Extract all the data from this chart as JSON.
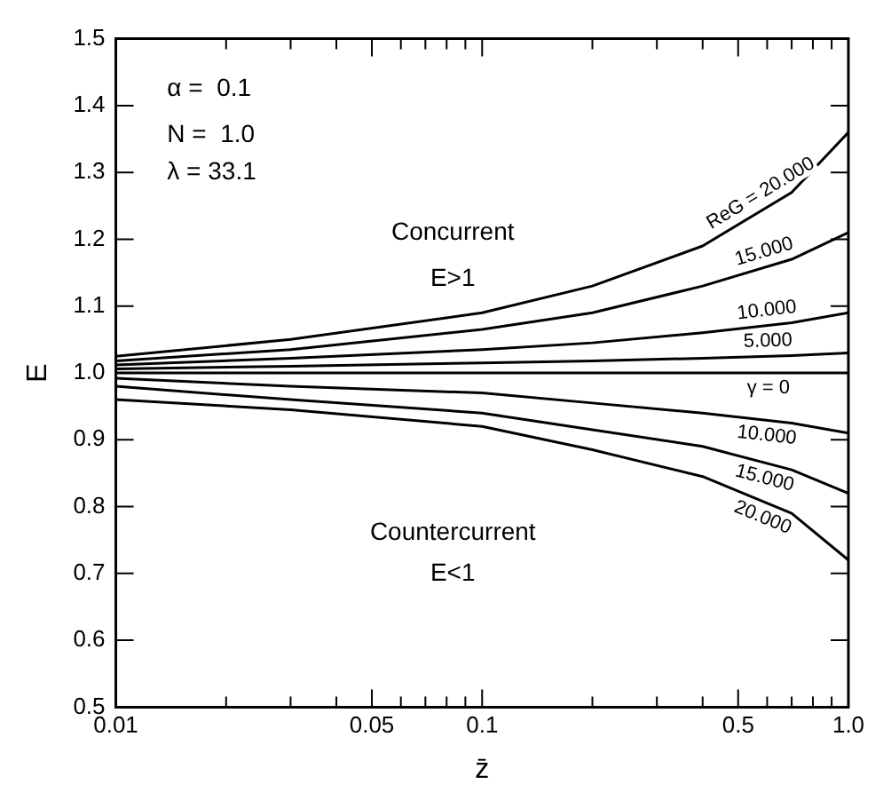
{
  "chart_data": {
    "type": "line",
    "xlabel": "z̄",
    "ylabel": "E",
    "x": [
      0.01,
      0.03,
      0.1,
      0.2,
      0.4,
      0.7,
      1.0
    ],
    "series": [
      {
        "name": "ReG = 20.000",
        "color": "#000000",
        "values": [
          1.025,
          1.05,
          1.09,
          1.13,
          1.19,
          1.27,
          1.36
        ]
      },
      {
        "name": "15.000",
        "color": "#000000",
        "values": [
          1.018,
          1.035,
          1.065,
          1.09,
          1.13,
          1.17,
          1.21
        ]
      },
      {
        "name": "10.000",
        "color": "#000000",
        "values": [
          1.012,
          1.022,
          1.035,
          1.045,
          1.06,
          1.075,
          1.09
        ]
      },
      {
        "name": "5.000",
        "color": "#000000",
        "values": [
          1.006,
          1.01,
          1.015,
          1.018,
          1.022,
          1.026,
          1.03
        ]
      },
      {
        "name": "γ = 0",
        "color": "#000000",
        "values": [
          1.0,
          1.0,
          1.0,
          1.0,
          1.0,
          1.0,
          1.0
        ]
      },
      {
        "name": "10.000",
        "color": "#000000",
        "values": [
          0.992,
          0.98,
          0.97,
          0.955,
          0.94,
          0.925,
          0.91
        ]
      },
      {
        "name": "15.000",
        "color": "#000000",
        "values": [
          0.98,
          0.96,
          0.94,
          0.915,
          0.89,
          0.855,
          0.82
        ]
      },
      {
        "name": "20.000",
        "color": "#000000",
        "values": [
          0.96,
          0.945,
          0.92,
          0.885,
          0.845,
          0.79,
          0.72
        ]
      }
    ],
    "log": "x",
    "xlim": [
      0.01,
      1.0
    ],
    "ylim": [
      0.5,
      1.5
    ],
    "xticks": [
      0.01,
      {
        "value": 0.02,
        "label": null
      },
      {
        "value": 0.03,
        "label": null
      },
      {
        "value": 0.04,
        "label": null
      },
      0.05,
      {
        "value": 0.06,
        "label": null
      },
      {
        "value": 0.07,
        "label": null
      },
      {
        "value": 0.08,
        "label": null
      },
      {
        "value": 0.09,
        "label": null
      },
      0.1,
      {
        "value": 0.2,
        "label": null
      },
      {
        "value": 0.3,
        "label": null
      },
      {
        "value": 0.4,
        "label": null
      },
      0.5,
      {
        "value": 0.6,
        "label": null
      },
      {
        "value": 0.7,
        "label": null
      },
      {
        "value": 0.8,
        "label": null
      },
      {
        "value": 0.9,
        "label": null
      },
      {
        "value": 1.0,
        "label": "1.0"
      }
    ],
    "yticks": [
      0.5,
      0.6,
      0.7,
      0.8,
      0.9,
      {
        "value": 1.0,
        "label": "1.0"
      },
      1.1,
      1.2,
      1.3,
      1.4,
      1.5
    ],
    "grid": false,
    "legend": "right",
    "marker": "none",
    "line_style": "solid",
    "annotations": [
      "α =  0.1",
      "N =  1.0",
      "λ = 33.1",
      "Concurrent",
      "E>1",
      "Countercurrent",
      "E<1"
    ]
  }
}
